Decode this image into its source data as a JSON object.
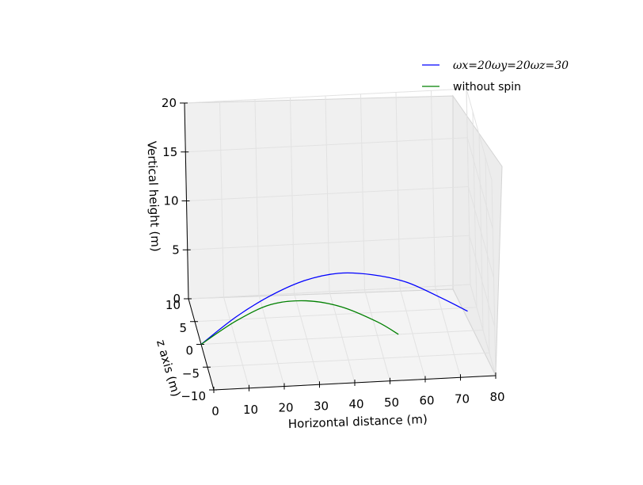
{
  "chart_data": {
    "type": "line",
    "projection": "3d",
    "xlabel": "Horizontal distance (m)",
    "ylabel": "z axis (m)",
    "zlabel": "Vertical height (m)",
    "x_ticks": [
      "0",
      "10",
      "20",
      "30",
      "40",
      "50",
      "60",
      "70",
      "80"
    ],
    "y_ticks": [
      "−10",
      "−5",
      "0",
      "5",
      "10"
    ],
    "z_ticks": [
      "0",
      "5",
      "10",
      "15",
      "20"
    ],
    "xlim": [
      0,
      80
    ],
    "ylim": [
      -10,
      10
    ],
    "zlim": [
      0,
      20
    ],
    "grid": true,
    "legend_position": "top-right",
    "series": [
      {
        "name": "ωx=20ωy=20ωz=30",
        "color": "#0000ff",
        "x": [
          0,
          10,
          20,
          30,
          40,
          50,
          60,
          70,
          78
        ],
        "y": [
          0,
          0.2,
          0.6,
          1.2,
          2.0,
          3.0,
          4.2,
          5.6,
          6.8
        ],
        "z": [
          0,
          2.5,
          4.3,
          5.4,
          5.6,
          4.8,
          3.3,
          0.9,
          -1.2
        ]
      },
      {
        "name": "without spin",
        "color": "#008000",
        "x": [
          0,
          10,
          20,
          30,
          40,
          50,
          56
        ],
        "y": [
          0,
          0,
          0,
          0,
          0,
          0,
          0
        ],
        "z": [
          0,
          2.2,
          3.7,
          3.9,
          3.1,
          1.4,
          0
        ]
      }
    ]
  }
}
